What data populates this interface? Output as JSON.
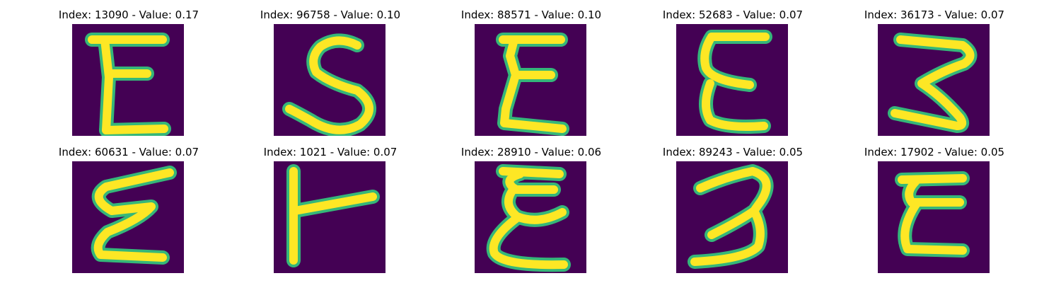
{
  "figure": {
    "panels": [
      {
        "title": "Index: 13090 - Value: 0.17",
        "index": 13090,
        "value": 0.17,
        "glyph": "E"
      },
      {
        "title": "Index: 96758 - Value: 0.10",
        "index": 96758,
        "value": 0.1,
        "glyph": "S"
      },
      {
        "title": "Index: 88571 - Value: 0.10",
        "index": 88571,
        "value": 0.1,
        "glyph": "E"
      },
      {
        "title": "Index: 52683 - Value: 0.07",
        "index": 52683,
        "value": 0.07,
        "glyph": "E"
      },
      {
        "title": "Index: 36173 - Value: 0.07",
        "index": 36173,
        "value": 0.07,
        "glyph": "3"
      },
      {
        "title": "Index: 60631 - Value: 0.07",
        "index": 60631,
        "value": 0.07,
        "glyph": "E"
      },
      {
        "title": "Index: 1021 - Value: 0.07",
        "index": 1021,
        "value": 0.07,
        "glyph": "T"
      },
      {
        "title": "Index: 28910 - Value: 0.06",
        "index": 28910,
        "value": 0.06,
        "glyph": "E"
      },
      {
        "title": "Index: 89243 - Value: 0.05",
        "index": 89243,
        "value": 0.05,
        "glyph": "3"
      },
      {
        "title": "Index: 17902 - Value: 0.05",
        "index": 17902,
        "value": 0.05,
        "glyph": "E"
      }
    ],
    "colors": {
      "background": "#440154",
      "stroke_edge": "#35b779",
      "stroke_core": "#fde725"
    }
  }
}
